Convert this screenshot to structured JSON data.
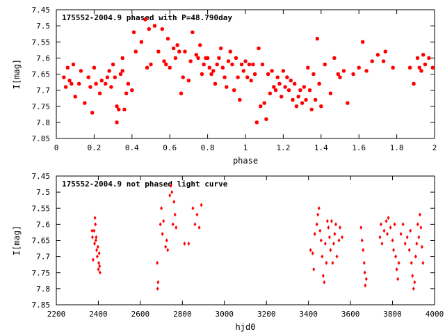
{
  "chart_data": [
    {
      "type": "scatter",
      "title": "175552-2004.9 phased with P=48.790day",
      "xlabel": "phase",
      "ylabel": "I[mag]",
      "xlim": [
        0,
        2
      ],
      "ylim": [
        7.85,
        7.45
      ],
      "y_inverted": true,
      "x_ticks": [
        "0",
        "0.2",
        "0.4",
        "0.6",
        "0.8",
        "1",
        "1.2",
        "1.4",
        "1.6",
        "1.8",
        "2"
      ],
      "y_ticks": [
        "7.45",
        "7.5",
        "7.55",
        "7.6",
        "7.65",
        "7.7",
        "7.75",
        "7.8",
        "7.85"
      ],
      "marker": "asterisk",
      "color": "#ff0000",
      "points": [
        [
          0.04,
          7.66
        ],
        [
          0.05,
          7.69
        ],
        [
          0.06,
          7.63
        ],
        [
          0.07,
          7.67
        ],
        [
          0.08,
          7.68
        ],
        [
          0.09,
          7.62
        ],
        [
          0.1,
          7.72
        ],
        [
          0.12,
          7.68
        ],
        [
          0.13,
          7.64
        ],
        [
          0.15,
          7.74
        ],
        [
          0.17,
          7.66
        ],
        [
          0.18,
          7.69
        ],
        [
          0.19,
          7.77
        ],
        [
          0.2,
          7.63
        ],
        [
          0.21,
          7.68
        ],
        [
          0.23,
          7.71
        ],
        [
          0.24,
          7.67
        ],
        [
          0.26,
          7.68
        ],
        [
          0.27,
          7.66
        ],
        [
          0.28,
          7.64
        ],
        [
          0.29,
          7.69
        ],
        [
          0.3,
          7.62
        ],
        [
          0.31,
          7.66
        ],
        [
          0.32,
          7.75
        ],
        [
          0.32,
          7.8
        ],
        [
          0.33,
          7.76
        ],
        [
          0.34,
          7.65
        ],
        [
          0.35,
          7.6
        ],
        [
          0.35,
          7.64
        ],
        [
          0.36,
          7.76
        ],
        [
          0.37,
          7.71
        ],
        [
          0.38,
          7.68
        ],
        [
          0.4,
          7.7
        ],
        [
          0.41,
          7.52
        ],
        [
          0.42,
          7.58
        ],
        [
          0.45,
          7.55
        ],
        [
          0.47,
          7.48
        ],
        [
          0.48,
          7.63
        ],
        [
          0.49,
          7.51
        ],
        [
          0.5,
          7.62
        ],
        [
          0.52,
          7.5
        ],
        [
          0.54,
          7.58
        ],
        [
          0.56,
          7.51
        ],
        [
          0.57,
          7.61
        ],
        [
          0.58,
          7.62
        ],
        [
          0.59,
          7.54
        ],
        [
          0.6,
          7.63
        ],
        [
          0.62,
          7.57
        ],
        [
          0.63,
          7.6
        ],
        [
          0.64,
          7.56
        ],
        [
          0.65,
          7.58
        ],
        [
          0.66,
          7.71
        ],
        [
          0.67,
          7.66
        ],
        [
          0.68,
          7.58
        ],
        [
          0.7,
          7.67
        ],
        [
          0.71,
          7.61
        ],
        [
          0.72,
          7.52
        ],
        [
          0.74,
          7.59
        ],
        [
          0.75,
          7.6
        ],
        [
          0.76,
          7.56
        ],
        [
          0.77,
          7.65
        ],
        [
          0.78,
          7.62
        ],
        [
          0.79,
          7.6
        ],
        [
          0.8,
          7.6
        ],
        [
          0.81,
          7.63
        ],
        [
          0.82,
          7.65
        ],
        [
          0.83,
          7.64
        ],
        [
          0.84,
          7.68
        ],
        [
          0.85,
          7.62
        ],
        [
          0.86,
          7.6
        ],
        [
          0.87,
          7.57
        ],
        [
          0.88,
          7.63
        ],
        [
          0.89,
          7.66
        ],
        [
          0.9,
          7.69
        ],
        [
          0.91,
          7.61
        ],
        [
          0.92,
          7.58
        ],
        [
          0.93,
          7.62
        ],
        [
          0.94,
          7.7
        ],
        [
          0.95,
          7.6
        ],
        [
          0.96,
          7.66
        ],
        [
          0.97,
          7.73
        ],
        [
          0.98,
          7.62
        ],
        [
          0.99,
          7.64
        ],
        [
          1.0,
          7.61
        ],
        [
          1.01,
          7.66
        ],
        [
          1.02,
          7.62
        ],
        [
          1.03,
          7.67
        ],
        [
          1.04,
          7.62
        ],
        [
          1.05,
          7.65
        ],
        [
          1.06,
          7.8
        ],
        [
          1.07,
          7.57
        ],
        [
          1.08,
          7.75
        ],
        [
          1.09,
          7.62
        ],
        [
          1.1,
          7.74
        ],
        [
          1.11,
          7.79
        ],
        [
          1.12,
          7.65
        ],
        [
          1.13,
          7.71
        ],
        [
          1.14,
          7.64
        ],
        [
          1.15,
          7.69
        ],
        [
          1.16,
          7.7
        ],
        [
          1.17,
          7.66
        ],
        [
          1.18,
          7.68
        ],
        [
          1.19,
          7.72
        ],
        [
          1.2,
          7.64
        ],
        [
          1.21,
          7.69
        ],
        [
          1.22,
          7.66
        ],
        [
          1.23,
          7.7
        ],
        [
          1.24,
          7.67
        ],
        [
          1.25,
          7.73
        ],
        [
          1.26,
          7.68
        ],
        [
          1.27,
          7.75
        ],
        [
          1.28,
          7.72
        ],
        [
          1.29,
          7.7
        ],
        [
          1.3,
          7.74
        ],
        [
          1.31,
          7.69
        ],
        [
          1.32,
          7.73
        ],
        [
          1.33,
          7.63
        ],
        [
          1.34,
          7.7
        ],
        [
          1.35,
          7.76
        ],
        [
          1.36,
          7.65
        ],
        [
          1.37,
          7.73
        ],
        [
          1.38,
          7.54
        ],
        [
          1.39,
          7.68
        ],
        [
          1.4,
          7.75
        ],
        [
          1.42,
          7.62
        ],
        [
          1.45,
          7.71
        ],
        [
          1.47,
          7.6
        ],
        [
          1.49,
          7.65
        ],
        [
          1.5,
          7.66
        ],
        [
          1.52,
          7.64
        ],
        [
          1.54,
          7.74
        ],
        [
          1.57,
          7.65
        ],
        [
          1.6,
          7.63
        ],
        [
          1.62,
          7.55
        ],
        [
          1.64,
          7.64
        ],
        [
          1.67,
          7.61
        ],
        [
          1.7,
          7.59
        ],
        [
          1.73,
          7.61
        ],
        [
          1.74,
          7.58
        ],
        [
          1.78,
          7.63
        ],
        [
          1.87,
          7.63
        ],
        [
          1.89,
          7.68
        ],
        [
          1.91,
          7.6
        ],
        [
          1.92,
          7.63
        ],
        [
          1.93,
          7.64
        ],
        [
          1.94,
          7.59
        ],
        [
          1.95,
          7.62
        ],
        [
          1.97,
          7.6
        ],
        [
          1.99,
          7.63
        ]
      ]
    },
    {
      "type": "scatter",
      "title": "175552-2004.9 not phased light curve",
      "xlabel": "hjd0",
      "ylabel": "I[mag]",
      "xlim": [
        2200,
        4000
      ],
      "ylim": [
        7.85,
        7.45
      ],
      "y_inverted": true,
      "x_ticks": [
        "2200",
        "2400",
        "2600",
        "2800",
        "3000",
        "3200",
        "3400",
        "3600",
        "3800",
        "4000"
      ],
      "y_ticks": [
        "7.45",
        "7.5",
        "7.55",
        "7.6",
        "7.65",
        "7.7",
        "7.75",
        "7.8",
        "7.85"
      ],
      "marker": "diamond",
      "color": "#ff0000",
      "points": [
        [
          2370,
          7.62
        ],
        [
          2372,
          7.64
        ],
        [
          2375,
          7.71
        ],
        [
          2380,
          7.62
        ],
        [
          2382,
          7.66
        ],
        [
          2384,
          7.58
        ],
        [
          2386,
          7.6
        ],
        [
          2388,
          7.65
        ],
        [
          2390,
          7.64
        ],
        [
          2392,
          7.68
        ],
        [
          2395,
          7.7
        ],
        [
          2398,
          7.67
        ],
        [
          2400,
          7.74
        ],
        [
          2402,
          7.72
        ],
        [
          2404,
          7.69
        ],
        [
          2406,
          7.73
        ],
        [
          2408,
          7.75
        ],
        [
          2680,
          7.72
        ],
        [
          2682,
          7.8
        ],
        [
          2684,
          7.78
        ],
        [
          2695,
          7.6
        ],
        [
          2700,
          7.55
        ],
        [
          2705,
          7.63
        ],
        [
          2710,
          7.59
        ],
        [
          2720,
          7.67
        ],
        [
          2725,
          7.65
        ],
        [
          2730,
          7.68
        ],
        [
          2740,
          7.51
        ],
        [
          2745,
          7.48
        ],
        [
          2750,
          7.5
        ],
        [
          2755,
          7.6
        ],
        [
          2760,
          7.53
        ],
        [
          2765,
          7.57
        ],
        [
          2770,
          7.61
        ],
        [
          2810,
          7.66
        ],
        [
          2830,
          7.66
        ],
        [
          2850,
          7.55
        ],
        [
          2860,
          7.6
        ],
        [
          2870,
          7.57
        ],
        [
          2880,
          7.61
        ],
        [
          2890,
          7.54
        ],
        [
          3410,
          7.68
        ],
        [
          3420,
          7.69
        ],
        [
          3425,
          7.74
        ],
        [
          3430,
          7.63
        ],
        [
          3440,
          7.6
        ],
        [
          3445,
          7.57
        ],
        [
          3450,
          7.55
        ],
        [
          3455,
          7.62
        ],
        [
          3460,
          7.65
        ],
        [
          3465,
          7.7
        ],
        [
          3470,
          7.76
        ],
        [
          3475,
          7.78
        ],
        [
          3480,
          7.66
        ],
        [
          3485,
          7.72
        ],
        [
          3490,
          7.59
        ],
        [
          3495,
          7.61
        ],
        [
          3500,
          7.64
        ],
        [
          3505,
          7.68
        ],
        [
          3510,
          7.59
        ],
        [
          3515,
          7.72
        ],
        [
          3520,
          7.66
        ],
        [
          3525,
          7.63
        ],
        [
          3530,
          7.6
        ],
        [
          3535,
          7.7
        ],
        [
          3545,
          7.65
        ],
        [
          3550,
          7.61
        ],
        [
          3560,
          7.64
        ],
        [
          3650,
          7.61
        ],
        [
          3655,
          7.65
        ],
        [
          3660,
          7.68
        ],
        [
          3665,
          7.72
        ],
        [
          3668,
          7.75
        ],
        [
          3670,
          7.79
        ],
        [
          3675,
          7.77
        ],
        [
          3740,
          7.64
        ],
        [
          3745,
          7.6
        ],
        [
          3750,
          7.66
        ],
        [
          3760,
          7.62
        ],
        [
          3770,
          7.59
        ],
        [
          3775,
          7.63
        ],
        [
          3780,
          7.58
        ],
        [
          3790,
          7.61
        ],
        [
          3800,
          7.65
        ],
        [
          3805,
          7.68
        ],
        [
          3810,
          7.6
        ],
        [
          3815,
          7.7
        ],
        [
          3820,
          7.74
        ],
        [
          3825,
          7.77
        ],
        [
          3830,
          7.72
        ],
        [
          3840,
          7.63
        ],
        [
          3850,
          7.6
        ],
        [
          3860,
          7.66
        ],
        [
          3870,
          7.64
        ],
        [
          3880,
          7.68
        ],
        [
          3885,
          7.62
        ],
        [
          3890,
          7.72
        ],
        [
          3895,
          7.76
        ],
        [
          3900,
          7.8
        ],
        [
          3905,
          7.78
        ],
        [
          3910,
          7.7
        ],
        [
          3915,
          7.66
        ],
        [
          3920,
          7.6
        ],
        [
          3925,
          7.64
        ],
        [
          3930,
          7.57
        ],
        [
          3935,
          7.61
        ],
        [
          3940,
          7.67
        ],
        [
          3945,
          7.72
        ]
      ]
    }
  ]
}
